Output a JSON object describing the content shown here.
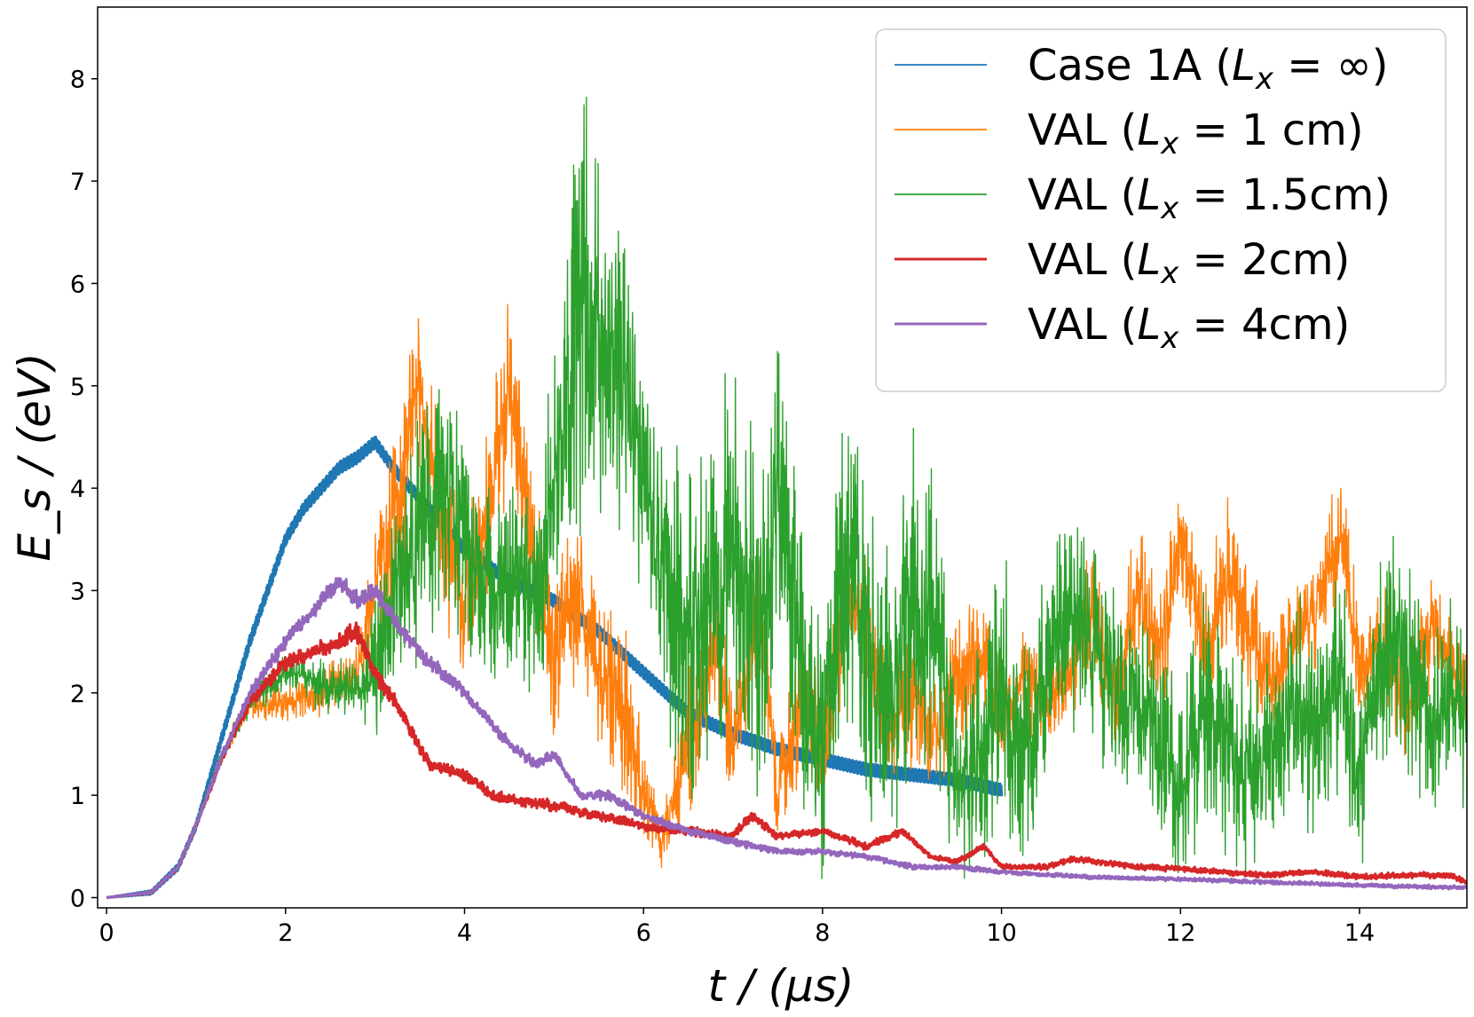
{
  "chart_data": {
    "type": "line",
    "title": "",
    "xlabel": "t / (μs)",
    "ylabel": "E_s / (eV)",
    "xlim": [
      -0.1,
      15.2
    ],
    "ylim": [
      -0.1,
      8.7
    ],
    "xticks": [
      0,
      2,
      4,
      6,
      8,
      10,
      12,
      14
    ],
    "yticks": [
      0,
      1,
      2,
      3,
      4,
      5,
      6,
      7,
      8
    ],
    "xtick_labels": [
      "0",
      "2",
      "4",
      "6",
      "8",
      "10",
      "12",
      "14"
    ],
    "ytick_labels": [
      "0",
      "1",
      "2",
      "3",
      "4",
      "5",
      "6",
      "7",
      "8"
    ],
    "legend_position": "top-right",
    "series": [
      {
        "name": "Case 1A",
        "legend_main": "Case 1A (",
        "legend_sym": "L",
        "legend_sub": "x",
        "legend_rest": " = ∞)",
        "color": "#1f77b4",
        "x": [
          0,
          0.5,
          0.8,
          1.0,
          1.2,
          1.4,
          1.6,
          1.8,
          2.0,
          2.2,
          2.4,
          2.6,
          2.8,
          3.0,
          3.2,
          3.5,
          4.0,
          4.5,
          5.0,
          5.5,
          6.0,
          6.5,
          7.0,
          7.5,
          8.0,
          8.5,
          9.0,
          9.5,
          10.0
        ],
        "values": [
          0,
          0.05,
          0.3,
          0.7,
          1.3,
          1.9,
          2.5,
          3.0,
          3.5,
          3.8,
          4.0,
          4.2,
          4.3,
          4.45,
          4.2,
          3.9,
          3.4,
          3.1,
          2.9,
          2.6,
          2.2,
          1.8,
          1.6,
          1.45,
          1.35,
          1.25,
          1.2,
          1.15,
          1.05
        ]
      },
      {
        "name": "VAL (Lx = 1 cm)",
        "legend_main": "VAL (",
        "legend_sym": "L",
        "legend_sub": "x",
        "legend_rest": " = 1 cm)",
        "color": "#ff7f0e",
        "x": [
          0,
          0.5,
          0.8,
          1.0,
          1.3,
          1.6,
          2.0,
          2.4,
          2.8,
          3.0,
          3.3,
          3.5,
          3.8,
          4.0,
          4.3,
          4.5,
          4.8,
          5.0,
          5.3,
          5.5,
          5.8,
          6.0,
          6.2,
          6.5,
          6.8,
          7.0,
          7.3,
          7.5,
          7.8,
          8.0,
          8.3,
          8.5,
          8.8,
          9.0,
          9.3,
          9.5,
          9.8,
          10.0,
          10.3,
          10.5,
          10.8,
          11.0,
          11.3,
          11.5,
          11.8,
          12.0,
          12.3,
          12.5,
          12.8,
          13.0,
          13.3,
          13.5,
          13.8,
          14.0,
          14.3,
          14.5,
          14.8,
          15.0,
          15.2
        ],
        "values": [
          0,
          0.05,
          0.3,
          0.7,
          1.4,
          1.9,
          1.9,
          2.0,
          2.2,
          3.0,
          4.0,
          5.0,
          3.5,
          2.8,
          4.0,
          5.0,
          3.2,
          2.4,
          3.0,
          2.2,
          1.8,
          1.0,
          0.5,
          1.5,
          2.5,
          1.5,
          2.8,
          1.0,
          2.0,
          1.5,
          3.0,
          2.5,
          1.6,
          2.0,
          1.5,
          2.2,
          2.3,
          1.8,
          2.2,
          1.8,
          2.3,
          2.8,
          2.0,
          3.0,
          2.5,
          3.5,
          2.4,
          3.2,
          2.6,
          2.0,
          2.6,
          2.8,
          3.5,
          2.2,
          2.5,
          1.8,
          2.6,
          2.3,
          2.0
        ],
        "amplitudes": [
          0,
          0.02,
          0.03,
          0.05,
          0.1,
          0.15,
          0.2,
          0.25,
          0.3,
          0.6,
          1.2,
          0.8,
          0.9,
          0.8,
          1.0,
          1.0,
          0.9,
          0.9,
          0.9,
          0.9,
          0.9,
          0.5,
          0.3,
          0.8,
          0.8,
          0.6,
          0.8,
          0.5,
          0.8,
          0.6,
          0.8,
          0.8,
          0.6,
          0.8,
          0.6,
          0.8,
          0.6,
          0.5,
          0.6,
          0.5,
          0.6,
          0.7,
          0.6,
          0.8,
          0.7,
          0.8,
          0.7,
          0.8,
          0.7,
          0.6,
          0.6,
          0.7,
          0.8,
          0.6,
          0.6,
          0.5,
          0.6,
          0.5,
          0.5
        ]
      },
      {
        "name": "VAL (Lx = 1.5cm)",
        "legend_main": "VAL (",
        "legend_sym": "L",
        "legend_sub": "x",
        "legend_rest": " = 1.5cm)",
        "color": "#2ca02c",
        "x": [
          0,
          0.5,
          0.8,
          1.0,
          1.3,
          1.6,
          2.0,
          2.4,
          2.8,
          3.0,
          3.2,
          3.5,
          3.8,
          4.0,
          4.2,
          4.5,
          4.8,
          5.0,
          5.3,
          5.5,
          5.8,
          6.0,
          6.3,
          6.5,
          6.8,
          7.0,
          7.3,
          7.5,
          7.8,
          8.0,
          8.3,
          8.5,
          8.8,
          9.0,
          9.3,
          9.5,
          9.8,
          10.0,
          10.3,
          10.5,
          10.8,
          11.0,
          11.3,
          11.5,
          11.8,
          12.0,
          12.3,
          12.5,
          12.8,
          13.0,
          13.3,
          13.5,
          13.8,
          14.0,
          14.3,
          14.5,
          14.8,
          15.0,
          15.2
        ],
        "values": [
          0,
          0.05,
          0.3,
          0.7,
          1.4,
          1.9,
          2.2,
          2.1,
          2.0,
          2.2,
          3.0,
          3.5,
          4.0,
          3.5,
          3.0,
          3.2,
          3.0,
          4.0,
          6.0,
          5.5,
          5.0,
          4.0,
          3.0,
          2.5,
          3.0,
          3.5,
          2.5,
          4.0,
          2.0,
          1.5,
          3.5,
          2.5,
          2.0,
          3.0,
          2.5,
          1.0,
          1.5,
          2.0,
          1.5,
          2.2,
          2.8,
          2.5,
          2.0,
          2.0,
          1.5,
          1.0,
          2.0,
          1.5,
          1.2,
          1.5,
          2.0,
          1.5,
          2.2,
          1.2,
          2.5,
          2.5,
          1.5,
          2.0,
          1.8
        ],
        "amplitudes": [
          0,
          0.02,
          0.03,
          0.05,
          0.1,
          0.15,
          0.2,
          0.3,
          0.3,
          0.8,
          1.0,
          1.3,
          1.3,
          1.2,
          1.0,
          1.0,
          1.2,
          1.5,
          2.5,
          2.0,
          1.6,
          1.4,
          1.6,
          1.8,
          1.8,
          2.0,
          1.8,
          1.8,
          1.6,
          1.4,
          1.8,
          1.8,
          1.6,
          1.8,
          1.6,
          1.0,
          1.2,
          1.5,
          1.2,
          1.4,
          1.2,
          1.0,
          1.2,
          1.0,
          1.2,
          1.0,
          1.2,
          1.2,
          1.0,
          1.0,
          1.2,
          1.0,
          1.2,
          1.0,
          1.2,
          1.2,
          1.0,
          1.0,
          1.0
        ]
      },
      {
        "name": "VAL (Lx = 2cm)",
        "legend_main": "VAL (",
        "legend_sym": "L",
        "legend_sub": "x",
        "legend_rest": " = 2cm)",
        "color": "#d62728",
        "x": [
          0,
          0.5,
          0.8,
          1.0,
          1.3,
          1.6,
          2.0,
          2.3,
          2.6,
          2.8,
          3.0,
          3.3,
          3.6,
          4.0,
          4.3,
          4.6,
          5.0,
          5.5,
          6.0,
          6.5,
          7.0,
          7.2,
          7.5,
          8.0,
          8.5,
          8.9,
          9.2,
          9.5,
          9.8,
          10.0,
          10.5,
          10.8,
          11.5,
          12.0,
          12.5,
          13.0,
          13.5,
          14.0,
          14.5,
          15.0,
          15.2
        ],
        "values": [
          0,
          0.05,
          0.3,
          0.7,
          1.4,
          1.9,
          2.3,
          2.4,
          2.5,
          2.6,
          2.2,
          1.8,
          1.3,
          1.2,
          1.0,
          0.95,
          0.9,
          0.8,
          0.7,
          0.65,
          0.6,
          0.8,
          0.6,
          0.65,
          0.5,
          0.65,
          0.4,
          0.35,
          0.5,
          0.3,
          0.3,
          0.38,
          0.3,
          0.28,
          0.25,
          0.22,
          0.25,
          0.2,
          0.22,
          0.22,
          0.15
        ],
        "amplitudes": [
          0,
          0.01,
          0.02,
          0.03,
          0.05,
          0.06,
          0.08,
          0.08,
          0.1,
          0.12,
          0.1,
          0.08,
          0.08,
          0.07,
          0.06,
          0.06,
          0.06,
          0.05,
          0.05,
          0.05,
          0.05,
          0.05,
          0.04,
          0.04,
          0.04,
          0.04,
          0.03,
          0.03,
          0.03,
          0.03,
          0.03,
          0.03,
          0.03,
          0.03,
          0.03,
          0.03,
          0.03,
          0.03,
          0.03,
          0.03,
          0.03
        ]
      },
      {
        "name": "VAL (Lx = 4cm)",
        "legend_main": "VAL (",
        "legend_sym": "L",
        "legend_sub": "x",
        "legend_rest": " = 4cm)",
        "color": "#9467bd",
        "x": [
          0,
          0.5,
          0.8,
          1.0,
          1.3,
          1.6,
          2.0,
          2.3,
          2.6,
          2.8,
          3.0,
          3.3,
          3.6,
          3.9,
          4.2,
          4.5,
          4.8,
          5.0,
          5.3,
          5.6,
          6.0,
          6.5,
          7.0,
          7.5,
          8.0,
          8.5,
          9.0,
          9.5,
          10.0,
          11.0,
          12.0,
          13.0,
          14.0,
          15.0,
          15.2
        ],
        "values": [
          0,
          0.05,
          0.3,
          0.7,
          1.4,
          2.0,
          2.5,
          2.8,
          3.1,
          2.9,
          3.0,
          2.6,
          2.3,
          2.1,
          1.8,
          1.5,
          1.3,
          1.4,
          1.0,
          1.0,
          0.8,
          0.65,
          0.55,
          0.45,
          0.45,
          0.4,
          0.3,
          0.3,
          0.25,
          0.2,
          0.18,
          0.15,
          0.12,
          0.1,
          0.1
        ],
        "amplitudes": [
          0,
          0.01,
          0.02,
          0.03,
          0.05,
          0.06,
          0.08,
          0.08,
          0.1,
          0.1,
          0.1,
          0.08,
          0.08,
          0.07,
          0.06,
          0.06,
          0.06,
          0.05,
          0.05,
          0.05,
          0.04,
          0.04,
          0.04,
          0.03,
          0.03,
          0.03,
          0.03,
          0.03,
          0.02,
          0.02,
          0.02,
          0.02,
          0.02,
          0.02,
          0.02
        ]
      }
    ]
  }
}
